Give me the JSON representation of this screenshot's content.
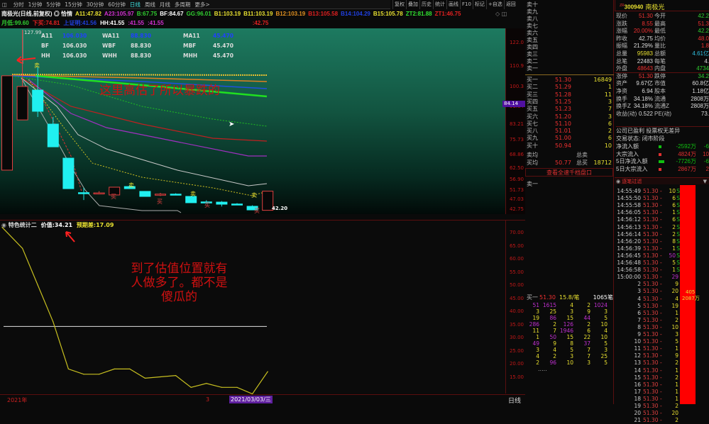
{
  "toolbar": {
    "tabs": [
      "分时",
      "1分钟",
      "5分钟",
      "15分钟",
      "30分钟",
      "60分钟",
      "日线",
      "周线",
      "月线",
      "多周期",
      "更多>"
    ],
    "active": "日线",
    "right": [
      "复权",
      "叠加",
      "历史",
      "统计",
      "画线",
      "F10",
      "标记",
      "+自选",
      "返回"
    ]
  },
  "header": {
    "title": "南极光(日线,前复权) ◎ 恰情",
    "line1": [
      {
        "t": "A11:47.82",
        "c": "#e8e030"
      },
      {
        "t": "A23:105.97",
        "c": "#d030d0"
      },
      {
        "t": "B:67.75",
        "c": "#30d030"
      },
      {
        "t": "BF:84.67",
        "c": "#ffffff"
      },
      {
        "t": "GG:96.01",
        "c": "#30d030"
      },
      {
        "t": "B1:103.19",
        "c": "#e8e030"
      },
      {
        "t": "B11:103.19",
        "c": "#e8e030"
      },
      {
        "t": "B12:103.19",
        "c": "#e09020"
      },
      {
        "t": "B13:105.58",
        "c": "#e02020"
      },
      {
        "t": "B14:104.29",
        "c": "#2040e0"
      },
      {
        "t": "B15:105.78",
        "c": "#e8e030"
      },
      {
        "t": "ZT2:81.88",
        "c": "#30e030"
      },
      {
        "t": "ZT1:46.75",
        "c": "#e02020"
      }
    ],
    "line2": [
      {
        "t": "月低:99.60",
        "c": "#30d030"
      },
      {
        "t": "下买:74.81",
        "c": "#e02020"
      },
      {
        "t": "上证明:41.56",
        "c": "#2040e0"
      },
      {
        "t": "HH:41.55",
        "c": "#ffffff"
      },
      {
        "t": ":41.55",
        "c": "#d030d0"
      },
      {
        "t": ":41.55",
        "c": "#d030d0"
      },
      {
        "t": ":42.75",
        "c": "#e02020"
      }
    ]
  },
  "main": {
    "high_label": "127.99",
    "last_label": "42.20",
    "crosshair_price": "84.14",
    "table": [
      [
        "A11",
        "106.030",
        "WA11",
        "88.830",
        "MA11",
        "45.470"
      ],
      [
        "BF",
        "106.030",
        "WBF",
        "88.830",
        "MBF",
        "45.470"
      ],
      [
        "HH",
        "106.030",
        "WHH",
        "88.830",
        "MHH",
        "45.470"
      ]
    ],
    "annotation": "这里高估了所以暴跌的",
    "price_axis": [
      "122.0",
      "110.9",
      "100.3",
      "91.64",
      "83.21",
      "75.73",
      "68.86",
      "62.50",
      "56.90",
      "51.73",
      "47.03",
      "42.75"
    ],
    "candles": [
      {
        "o": 61.3,
        "h": 106.2,
        "l": 61.3,
        "c": 106.2
      },
      {
        "o": 85.2,
        "h": 127.99,
        "l": 85.2,
        "c": 101.1
      },
      {
        "o": 99.4,
        "h": 110.2,
        "l": 86.6,
        "c": 89.3
      },
      {
        "o": 83.2,
        "h": 86.6,
        "l": 72.4,
        "c": 72.4
      },
      {
        "o": 67.0,
        "h": 67.0,
        "l": 52.5,
        "c": 52.5
      },
      {
        "o": 50.6,
        "h": 52.9,
        "l": 47.1,
        "c": 50.4
      },
      {
        "o": 50.4,
        "h": 51.3,
        "l": 49.8,
        "c": 50.5
      },
      {
        "o": 49.5,
        "h": 53.2,
        "l": 49.5,
        "c": 53.2
      },
      {
        "o": 53.5,
        "h": 54.2,
        "l": 52.5,
        "c": 52.5
      },
      {
        "o": 51.2,
        "h": 51.2,
        "l": 48.8,
        "c": 48.8
      },
      {
        "o": 49.8,
        "h": 50.5,
        "l": 49.0,
        "c": 49.9
      },
      {
        "o": 49.9,
        "h": 50.3,
        "l": 49.4,
        "c": 49.8
      },
      {
        "o": 48.8,
        "h": 48.8,
        "l": 45.8,
        "c": 45.8
      },
      {
        "o": 46.2,
        "h": 47.0,
        "l": 45.5,
        "c": 46.1
      },
      {
        "o": 46.1,
        "h": 46.6,
        "l": 44.0,
        "c": 45.1
      },
      {
        "o": 45.2,
        "h": 45.6,
        "l": 44.8,
        "c": 45.1
      },
      {
        "o": 44.1,
        "h": 44.6,
        "l": 42.4,
        "c": 42.4
      },
      {
        "o": 42.2,
        "h": 51.3,
        "l": 42.2,
        "c": 51.3
      }
    ],
    "marker_sell": "卖",
    "marker_buy": "买"
  },
  "lower": {
    "name": "特色统计二",
    "value_label": "价值:34.21",
    "diff_label": "预期差:17.09",
    "annotation": [
      "到了估值位置就有",
      "人做多了。都不是",
      "傻瓜的"
    ],
    "axis": [
      "70.00",
      "65.00",
      "60.00",
      "55.00",
      "50.00",
      "45.00",
      "40.00",
      "35.00",
      "30.00",
      "25.00",
      "20.00",
      "15.00"
    ],
    "value_line": 34.21,
    "series": [
      72,
      64,
      50,
      36,
      18,
      16,
      16,
      18,
      18,
      14.5,
      15,
      15.5,
      11,
      12.5,
      11,
      11,
      8.5,
      17
    ]
  },
  "datebar": {
    "year": "2021年",
    "month": "3",
    "cursor_date": "2021/03/03/三",
    "period": "日线"
  },
  "book": {
    "sell": [
      "卖十",
      "卖九",
      "卖八",
      "卖七",
      "卖六",
      "卖五",
      "卖四",
      "卖三",
      "卖二",
      "卖一"
    ],
    "buy": [
      {
        "l": "买一",
        "p": "51.30",
        "v": "16849"
      },
      {
        "l": "买二",
        "p": "51.29",
        "v": "1"
      },
      {
        "l": "买三",
        "p": "51.28",
        "v": "11"
      },
      {
        "l": "买四",
        "p": "51.25",
        "v": "3"
      },
      {
        "l": "买五",
        "p": "51.23",
        "v": "7"
      },
      {
        "l": "买六",
        "p": "51.20",
        "v": "3"
      },
      {
        "l": "买七",
        "p": "51.10",
        "v": "6"
      },
      {
        "l": "买八",
        "p": "51.01",
        "v": "2"
      },
      {
        "l": "买九",
        "p": "51.00",
        "v": "6"
      },
      {
        "l": "买十",
        "p": "50.94",
        "v": "10"
      }
    ],
    "avg_sell": {
      "l": "卖均",
      "p": "",
      "t": "总卖",
      "v": ""
    },
    "avg_buy": {
      "l": "买均",
      "p": "50.77",
      "t": "总买",
      "v": "18712"
    },
    "link": "查看全速千档盘口",
    "sell1_label": "卖一",
    "queue_head": {
      "l": "买一",
      "p": "51.30",
      "avg": "15.8/笔",
      "count": "1065笔"
    },
    "queue": [
      [
        "51",
        "1615",
        "4",
        "2",
        "1024"
      ],
      [
        "3",
        "25",
        "3",
        "9",
        "3"
      ],
      [
        "19",
        "86",
        "15",
        "44",
        "5"
      ],
      [
        "286",
        "2",
        "126",
        "2",
        "10"
      ],
      [
        "11",
        "7",
        "1946",
        "6",
        "4"
      ],
      [
        "1",
        "50",
        "15",
        "22",
        "10"
      ],
      [
        "49",
        "9",
        "8",
        "37",
        "5"
      ],
      [
        "3",
        "4",
        "5",
        "7",
        "3"
      ],
      [
        "4",
        "2",
        "3",
        "7",
        "25"
      ],
      [
        "2",
        "96",
        "10",
        "3",
        "5"
      ]
    ],
    "queue_more": "....."
  },
  "info": {
    "code": "300940",
    "name": "南极光",
    "badge": "ZR",
    "rows": [
      [
        "现价",
        "51.30",
        "今开",
        "42.2"
      ],
      [
        "涨跌",
        "8.55",
        "最高",
        "51.3"
      ],
      [
        "涨幅",
        "20.00%",
        "最低",
        "42.2"
      ],
      [
        "昨收",
        "42.75",
        "均价",
        "48.0"
      ],
      [
        "振幅",
        "21.29%",
        "量比",
        "1.8"
      ],
      [
        "总量",
        "95983",
        "总额",
        "4.61亿"
      ],
      [
        "总笔",
        "22483",
        "每笔",
        "4."
      ],
      [
        "外盘",
        "48643",
        "内盘",
        "4734"
      ],
      [
        "涨停",
        "51.30",
        "跌停",
        "34.2"
      ],
      [
        "资产",
        "9.67亿",
        "市值",
        "60.8亿"
      ],
      [
        "净资",
        "6.94",
        "股本",
        "1.18亿"
      ],
      [
        "换手",
        "34.18%",
        "流通",
        "2808万"
      ],
      [
        "换手Z",
        "34.18%",
        "流通Z",
        "2808万"
      ],
      [
        "收益(动)",
        "0.522",
        "PE(动)",
        "73."
      ]
    ],
    "status1": "公司已盈利 投票权无差异",
    "status2": "交易状态: 闭市阶段",
    "flows": [
      [
        "净流入额",
        "-2592万",
        "-6",
        "#10c010"
      ],
      [
        "大宗流入",
        "4824万",
        "10",
        "#e03030"
      ],
      [
        "5日净流入额",
        "-7726万",
        "-6",
        "#10c010"
      ],
      [
        "5日大宗流入",
        "2867万",
        "2",
        "#e03030"
      ]
    ]
  },
  "ticks": {
    "title": "逐笔过滤",
    "rows": [
      [
        "14:55:49",
        "51.30",
        "10",
        "S"
      ],
      [
        "14:55:50",
        "51.30",
        "6",
        "S"
      ],
      [
        "14:55:58",
        "51.30",
        "6",
        "S"
      ],
      [
        "14:56:05",
        "51.30",
        "1",
        "S"
      ],
      [
        "14:56:12",
        "51.30",
        "6",
        "S"
      ],
      [
        "14:56:13",
        "51.30",
        "2",
        "S"
      ],
      [
        "14:56:14",
        "51.30",
        "2",
        "S"
      ],
      [
        "14:56:20",
        "51.30",
        "8",
        "S"
      ],
      [
        "14:56:39",
        "51.30",
        "1",
        "S"
      ],
      [
        "14:56:45",
        "51.30",
        "50",
        "S"
      ],
      [
        "14:56:48",
        "51.30",
        "5",
        "S"
      ],
      [
        "14:56:58",
        "51.30",
        "1",
        "S"
      ],
      [
        "15:00:00",
        "51.30",
        "29",
        ""
      ],
      [
        "2",
        "51.30",
        "9",
        ""
      ],
      [
        "3",
        "51.30",
        "20",
        ""
      ],
      [
        "4",
        "51.30",
        "4",
        ""
      ],
      [
        "5",
        "51.30",
        "19",
        ""
      ],
      [
        "6",
        "51.30",
        "1",
        ""
      ],
      [
        "7",
        "51.30",
        "2",
        ""
      ],
      [
        "8",
        "51.30",
        "10",
        ""
      ],
      [
        "9",
        "51.30",
        "3",
        ""
      ],
      [
        "10",
        "51.30",
        "5",
        ""
      ],
      [
        "11",
        "51.30",
        "1",
        ""
      ],
      [
        "12",
        "51.30",
        "9",
        ""
      ],
      [
        "13",
        "51.30",
        "2",
        ""
      ],
      [
        "14",
        "51.30",
        "1",
        ""
      ],
      [
        "15",
        "51.30",
        "2",
        ""
      ],
      [
        "16",
        "51.30",
        "1",
        ""
      ],
      [
        "17",
        "51.30",
        "1",
        ""
      ],
      [
        "18",
        "51.30",
        "1",
        ""
      ],
      [
        "19",
        "51.30",
        "2",
        ""
      ],
      [
        "20",
        "51.30",
        "20",
        ""
      ],
      [
        "21",
        "51.30",
        "2",
        ""
      ]
    ],
    "bar_label1": "405",
    "bar_label2": "2087万"
  },
  "colors": {
    "up": "#e02020",
    "down": "#20f0f0",
    "axis": "#c01818",
    "bg_main": "#1d7a60",
    "bar": "#ff0000"
  }
}
